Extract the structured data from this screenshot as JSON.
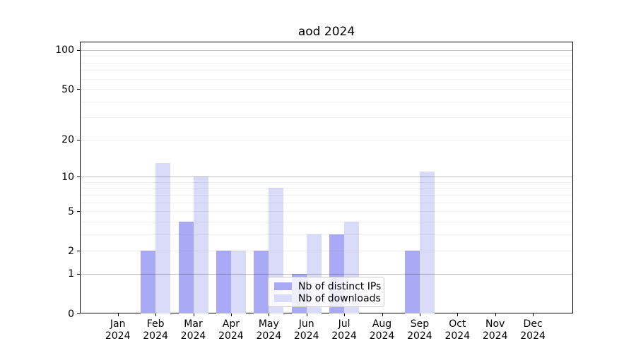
{
  "title": "aod 2024",
  "chart_data": {
    "type": "bar",
    "title": "aod 2024",
    "categories": [
      "Jan 2024",
      "Feb 2024",
      "Mar 2024",
      "Apr 2024",
      "May 2024",
      "Jun 2024",
      "Jul 2024",
      "Aug 2024",
      "Sep 2024",
      "Oct 2024",
      "Nov 2024",
      "Dec 2024"
    ],
    "series": [
      {
        "name": "Nb of distinct IPs",
        "color": "#a9a9f6",
        "values": [
          0,
          2,
          4,
          2,
          2,
          1,
          3,
          0,
          2,
          0,
          0,
          0
        ]
      },
      {
        "name": "Nb of downloads",
        "color": "#dadaf9",
        "values": [
          0,
          13,
          10,
          2,
          8,
          3,
          4,
          0,
          11,
          0,
          0,
          0
        ]
      }
    ],
    "yscale": "log1p",
    "ylim": [
      0,
      116
    ],
    "yticks": [
      0,
      1,
      2,
      5,
      10,
      20,
      50,
      100
    ],
    "yticks_major_grid": [
      1,
      10,
      100
    ],
    "yticks_minor_grid": [
      2,
      3,
      4,
      5,
      6,
      7,
      8,
      9,
      20,
      30,
      40,
      50,
      60,
      70,
      80,
      90
    ],
    "grid": true,
    "legend_position": "lower center",
    "colors": {
      "spine": "#000000",
      "background": "#ffffff",
      "major_grid": "#c3c3c3",
      "minor_grid": "#e9e9e9"
    }
  }
}
